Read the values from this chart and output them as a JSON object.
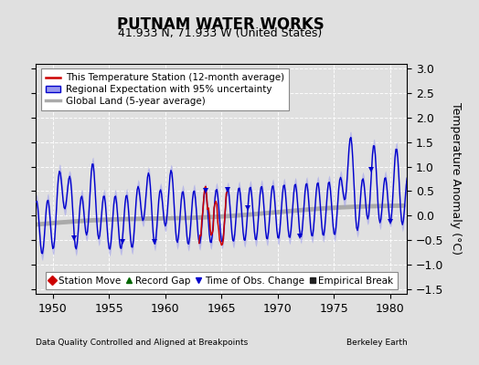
{
  "title": "PUTNAM WATER WORKS",
  "subtitle": "41.933 N, 71.933 W (United States)",
  "xlabel_left": "Data Quality Controlled and Aligned at Breakpoints",
  "xlabel_right": "Berkeley Earth",
  "ylabel": "Temperature Anomaly (°C)",
  "xlim": [
    1948.5,
    1981.5
  ],
  "ylim": [
    -1.6,
    3.1
  ],
  "yticks": [
    -1.5,
    -1.0,
    -0.5,
    0.0,
    0.5,
    1.0,
    1.5,
    2.0,
    2.5,
    3.0
  ],
  "xticks": [
    1950,
    1955,
    1960,
    1965,
    1970,
    1975,
    1980
  ],
  "background_color": "#e0e0e0",
  "plot_bg_color": "#e0e0e0",
  "regional_color": "#0000cc",
  "regional_fill_color": "#9999ee",
  "station_color": "#cc0000",
  "global_color": "#aaaaaa",
  "marker_colors": {
    "station_move": "#cc0000",
    "record_gap": "#006600",
    "obs_change": "#0000cc",
    "empirical": "#222222"
  },
  "title_fontsize": 12,
  "subtitle_fontsize": 9,
  "axis_fontsize": 9,
  "legend_fontsize": 7.5,
  "marker_legend_fontsize": 7.5
}
